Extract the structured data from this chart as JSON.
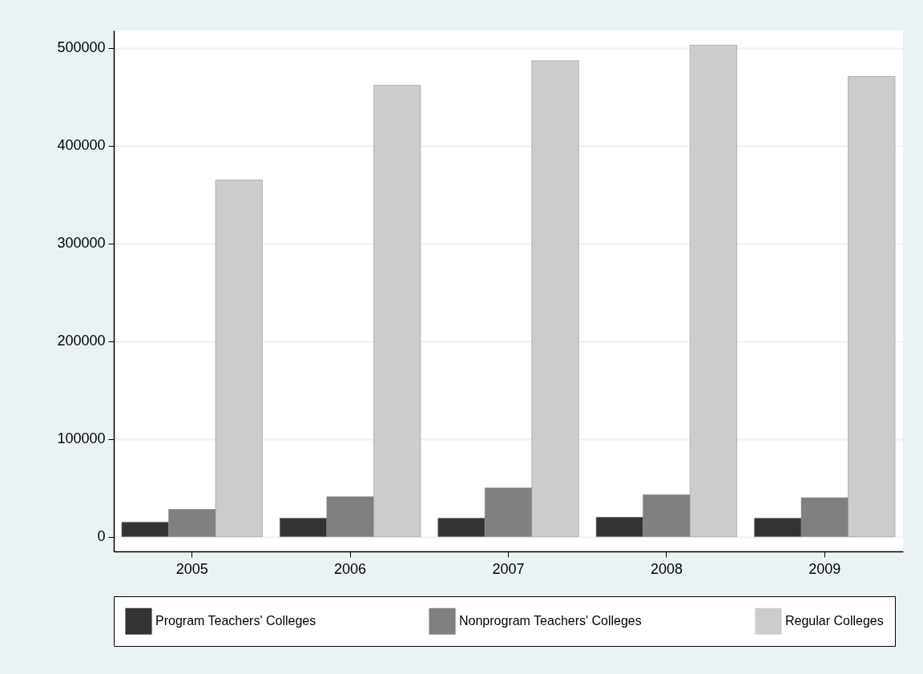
{
  "chart_data": {
    "type": "bar",
    "categories": [
      "2005",
      "2006",
      "2007",
      "2008",
      "2009"
    ],
    "series": [
      {
        "name": "Program Teachers' Colleges",
        "color": "#333333",
        "values": [
          15000,
          19000,
          19000,
          20000,
          19000
        ]
      },
      {
        "name": "Nonprogram Teachers' Colleges",
        "color": "#808080",
        "values": [
          28000,
          41000,
          50000,
          43000,
          40000
        ]
      },
      {
        "name": "Regular Colleges",
        "color": "#cccccc",
        "values": [
          365000,
          462000,
          487000,
          503000,
          471000
        ]
      }
    ],
    "ylim": [
      -15000,
      518000
    ],
    "yticks": [
      0,
      100000,
      200000,
      300000,
      400000,
      500000
    ],
    "grid": "y",
    "legend": "bottom"
  }
}
